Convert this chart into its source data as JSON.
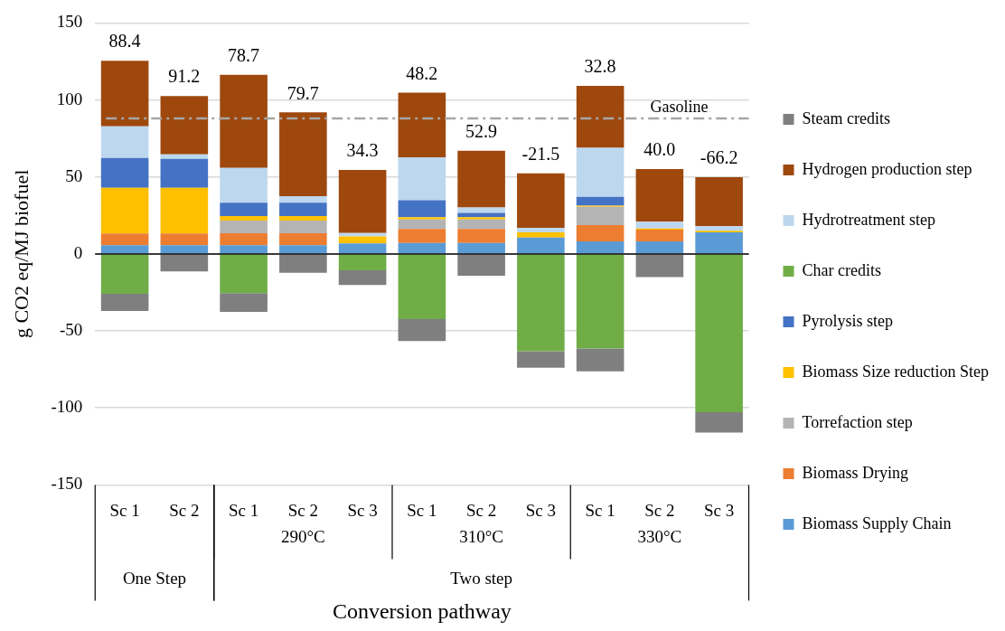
{
  "chart_data": {
    "type": "bar",
    "stacked": true,
    "xlabel": "Conversion pathway",
    "ylabel": "g CO2 eq/MJ biofuel",
    "categories": [
      "Sc 1",
      "Sc 2",
      "Sc 1",
      "Sc 2",
      "Sc 3",
      "Sc 1",
      "Sc 2",
      "Sc 3",
      "Sc 1",
      "Sc 2",
      "Sc 3"
    ],
    "series": [
      {
        "name": "Biomass Supply Chain",
        "color": "#5b9bd5",
        "values": [
          5.7,
          5.7,
          5.7,
          5.7,
          6.9,
          7.1,
          7.1,
          10.6,
          8.2,
          8.2,
          14
        ]
      },
      {
        "name": "Biomass Drying",
        "color": "#ed7d31",
        "values": [
          7.6,
          7.6,
          7.8,
          7.8,
          0,
          9.2,
          9.2,
          0,
          10.6,
          7.6,
          0
        ]
      },
      {
        "name": "Torrefaction step",
        "color": "#b4b4b4",
        "values": [
          0,
          0,
          8.2,
          8.2,
          0,
          6.1,
          6.1,
          0,
          11.8,
          0,
          0
        ]
      },
      {
        "name": "Biomass Size reduction Step",
        "color": "#ffc000",
        "values": [
          29.6,
          29.6,
          2.9,
          2.9,
          4.5,
          1.4,
          1.4,
          3.5,
          0.8,
          0.8,
          1
        ]
      },
      {
        "name": "Pyrolysis step",
        "color": "#4472c4",
        "values": [
          19.4,
          18.8,
          8.6,
          8.6,
          0,
          11,
          2.9,
          0,
          5.7,
          0,
          0
        ]
      },
      {
        "name": "Char credits",
        "color": "#70ad47",
        "values": [
          -25.9,
          0,
          -25.5,
          0,
          -10.6,
          -42.4,
          0,
          -63.1,
          -61.4,
          0,
          -102.8
        ]
      },
      {
        "name": "Hydrotreatment step",
        "color": "#bdd7ee",
        "values": [
          20.6,
          2.9,
          22.7,
          4.3,
          2.2,
          28,
          3.5,
          2.9,
          31.8,
          4.3,
          3
        ]
      },
      {
        "name": "Hydrogen production step",
        "color": "#9e480e",
        "values": [
          42.6,
          38,
          60.5,
          54.4,
          40.9,
          41.9,
          36.8,
          35.4,
          40.2,
          34.2,
          31.8
        ]
      },
      {
        "name": "Steam credits",
        "color": "#7f7f7f",
        "values": [
          -11.2,
          -11.4,
          -12.2,
          -12.2,
          -9.6,
          -14.1,
          -14.1,
          -10.8,
          -14.9,
          -15.1,
          -13.2
        ]
      }
    ],
    "totals": [
      "88.4",
      "91.2",
      "78.7",
      "79.7",
      "34.3",
      "48.2",
      "52.9",
      "-21.5",
      "32.8",
      "40.0",
      "-66.2"
    ],
    "ref_lines": [
      {
        "axis": "y",
        "value": 88,
        "label": "Gasoline",
        "color": "#a6a6a6",
        "line_style": "dashed"
      }
    ],
    "annotations": [
      "290°C",
      "310°C",
      "330°C",
      "One Step",
      "Two step"
    ],
    "ylim": [
      -150,
      150
    ],
    "yticks": [
      -150,
      -100,
      -50,
      0,
      50,
      100,
      150
    ],
    "grid": "y",
    "legend": "right"
  }
}
